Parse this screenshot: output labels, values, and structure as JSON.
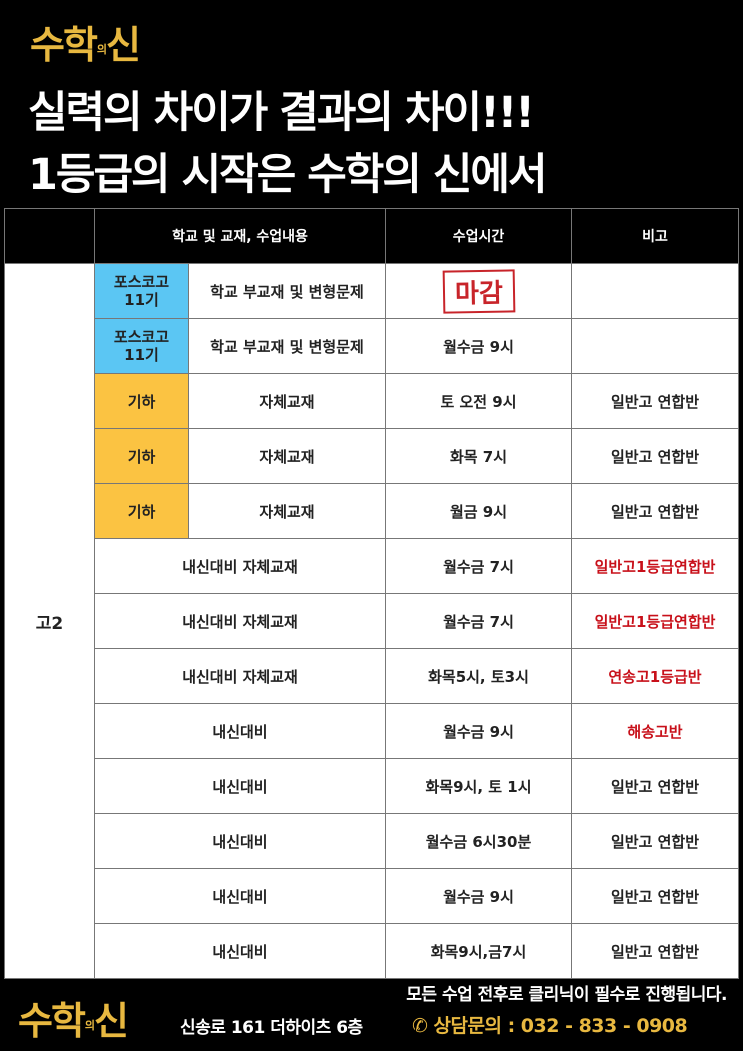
{
  "brand": {
    "logo_main": "수학",
    "logo_small": "의",
    "logo_end": "신",
    "accent": "#e8b840"
  },
  "headline": {
    "line1": "실력의 차이가 결과의 차이!!!",
    "line2": "1등급의 시작은 수학의 신에서"
  },
  "table": {
    "headers": [
      "",
      "학교 및 교재, 수업내용",
      "수업시간",
      "비고"
    ],
    "grade": "고2",
    "colors": {
      "blue_badge": "#5bc6f3",
      "yellow_badge": "#fbc342",
      "red_note": "#c8101a"
    },
    "rows": [
      {
        "badge": "포스코고 11기",
        "badge_color": "blue",
        "content": "학교 부교재 및 변형문제",
        "time": "",
        "stamp": "마감",
        "note": "",
        "note_red": false
      },
      {
        "badge": "포스코고 11기",
        "badge_color": "blue",
        "content": "학교 부교재 및 변형문제",
        "time": "월수금 9시",
        "note": "",
        "note_red": false
      },
      {
        "badge": "기하",
        "badge_color": "yellow",
        "content": "자체교재",
        "time": "토 오전 9시",
        "note": "일반고 연합반",
        "note_red": false
      },
      {
        "badge": "기하",
        "badge_color": "yellow",
        "content": "자체교재",
        "time": "화목 7시",
        "note": "일반고 연합반",
        "note_red": false
      },
      {
        "badge": "기하",
        "badge_color": "yellow",
        "content": "자체교재",
        "time": "월금 9시",
        "note": "일반고 연합반",
        "note_red": false
      },
      {
        "content": "내신대비 자체교재",
        "time": "월수금 7시",
        "note": "일반고1등급연합반",
        "note_red": true
      },
      {
        "content": "내신대비 자체교재",
        "time": "월수금 7시",
        "note": "일반고1등급연합반",
        "note_red": true
      },
      {
        "content": "내신대비 자체교재",
        "time": "화목5시, 토3시",
        "note": "연송고1등급반",
        "note_red": true
      },
      {
        "content": "내신대비",
        "time": "월수금 9시",
        "note": "해송고반",
        "note_red": true
      },
      {
        "content": "내신대비",
        "time": "화목9시, 토 1시",
        "note": "일반고 연합반",
        "note_red": false
      },
      {
        "content": "내신대비",
        "time": "월수금 6시30분",
        "note": "일반고 연합반",
        "note_red": false
      },
      {
        "content": "내신대비",
        "time": "월수금 9시",
        "note": "일반고 연합반",
        "note_red": false
      },
      {
        "content": "내신대비",
        "time": "화목9시,금7시",
        "note": "일반고 연합반",
        "note_red": false
      }
    ]
  },
  "footer": {
    "note": "모든 수업 전후로 클리닉이 필수로 진행됩니다.",
    "address": "신송로 161 더하이츠 6층",
    "phone_icon": "phone-icon",
    "contact": "상담문의 : 032 - 833 - 0908"
  }
}
